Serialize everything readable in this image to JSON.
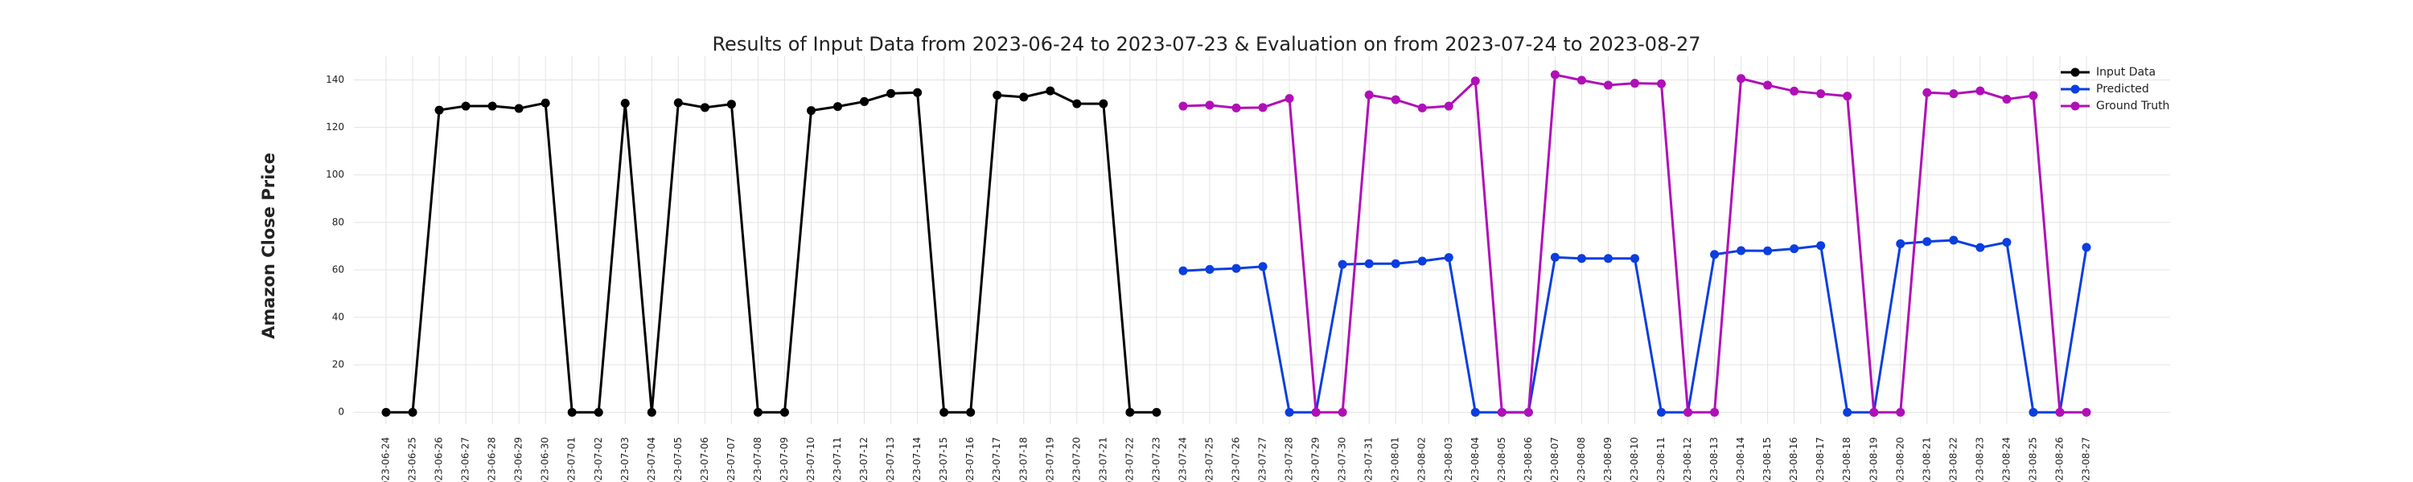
{
  "chart_data": {
    "type": "line",
    "title": "Results of Input Data from 2023-06-24 to 2023-07-23 & Evaluation on from 2023-07-24 to 2023-08-27",
    "y_label": "Amazon Close Price",
    "categories": [
      "2023-06-24",
      "2023-06-25",
      "2023-06-26",
      "2023-06-27",
      "2023-06-28",
      "2023-06-29",
      "2023-06-30",
      "2023-07-01",
      "2023-07-02",
      "2023-07-03",
      "2023-07-04",
      "2023-07-05",
      "2023-07-06",
      "2023-07-07",
      "2023-07-08",
      "2023-07-09",
      "2023-07-10",
      "2023-07-11",
      "2023-07-12",
      "2023-07-13",
      "2023-07-14",
      "2023-07-15",
      "2023-07-16",
      "2023-07-17",
      "2023-07-18",
      "2023-07-19",
      "2023-07-20",
      "2023-07-21",
      "2023-07-22",
      "2023-07-23",
      "2023-07-24",
      "2023-07-25",
      "2023-07-26",
      "2023-07-27",
      "2023-07-28",
      "2023-07-29",
      "2023-07-30",
      "2023-07-31",
      "2023-08-01",
      "2023-08-02",
      "2023-08-03",
      "2023-08-04",
      "2023-08-05",
      "2023-08-06",
      "2023-08-07",
      "2023-08-08",
      "2023-08-09",
      "2023-08-10",
      "2023-08-11",
      "2023-08-12",
      "2023-08-13",
      "2023-08-14",
      "2023-08-15",
      "2023-08-16",
      "2023-08-17",
      "2023-08-18",
      "2023-08-19",
      "2023-08-20",
      "2023-08-21",
      "2023-08-22",
      "2023-08-23",
      "2023-08-24",
      "2023-08-25",
      "2023-08-26",
      "2023-08-27"
    ],
    "series": [
      {
        "name": "Input Data",
        "color": "#000000",
        "values": [
          0,
          0,
          127.3,
          129,
          129,
          128,
          130.3,
          0,
          0,
          130.2,
          0,
          130.4,
          128.4,
          129.8,
          0,
          0,
          127.1,
          128.8,
          130.9,
          134.3,
          134.7,
          0,
          0,
          133.6,
          132.8,
          135.4,
          130,
          130,
          0,
          0,
          null,
          null,
          null,
          null,
          null,
          null,
          null,
          null,
          null,
          null,
          null,
          null,
          null,
          null,
          null,
          null,
          null,
          null,
          null,
          null,
          null,
          null,
          null,
          null,
          null,
          null,
          null,
          null,
          null,
          null,
          null,
          null,
          null,
          null,
          null
        ]
      },
      {
        "name": "Predicted",
        "color": "#0b3ee0",
        "values": [
          null,
          null,
          null,
          null,
          null,
          null,
          null,
          null,
          null,
          null,
          null,
          null,
          null,
          null,
          null,
          null,
          null,
          null,
          null,
          null,
          null,
          null,
          null,
          null,
          null,
          null,
          null,
          null,
          null,
          null,
          59.6,
          60.2,
          60.6,
          61.4,
          0,
          0,
          62.3,
          62.6,
          62.6,
          63.7,
          65.2,
          0,
          0,
          0,
          65.3,
          64.8,
          64.8,
          64.8,
          0,
          0,
          66.5,
          68.1,
          68,
          68.9,
          70.2,
          0,
          0,
          71,
          71.9,
          72.5,
          69.4,
          71.6,
          0,
          0,
          69.5
        ]
      },
      {
        "name": "Ground Truth",
        "color": "#b00fb8",
        "values": [
          null,
          null,
          null,
          null,
          null,
          null,
          null,
          null,
          null,
          null,
          null,
          null,
          null,
          null,
          null,
          null,
          null,
          null,
          null,
          null,
          null,
          null,
          null,
          null,
          null,
          null,
          null,
          null,
          null,
          null,
          129,
          129.4,
          128.2,
          128.4,
          132.2,
          0,
          0,
          133.7,
          131.7,
          128.2,
          129,
          139.6,
          0,
          0,
          142.2,
          139.9,
          137.8,
          138.6,
          138.4,
          0,
          0,
          140.6,
          137.8,
          135.3,
          134.2,
          133.2,
          0,
          0,
          134.7,
          134.2,
          135.4,
          131.9,
          133.4,
          0,
          0
        ]
      }
    ],
    "ylim": [
      -5,
      150
    ],
    "yticks": [
      0,
      20,
      40,
      60,
      80,
      100,
      120,
      140
    ],
    "grid": true,
    "legend": "upper right"
  }
}
